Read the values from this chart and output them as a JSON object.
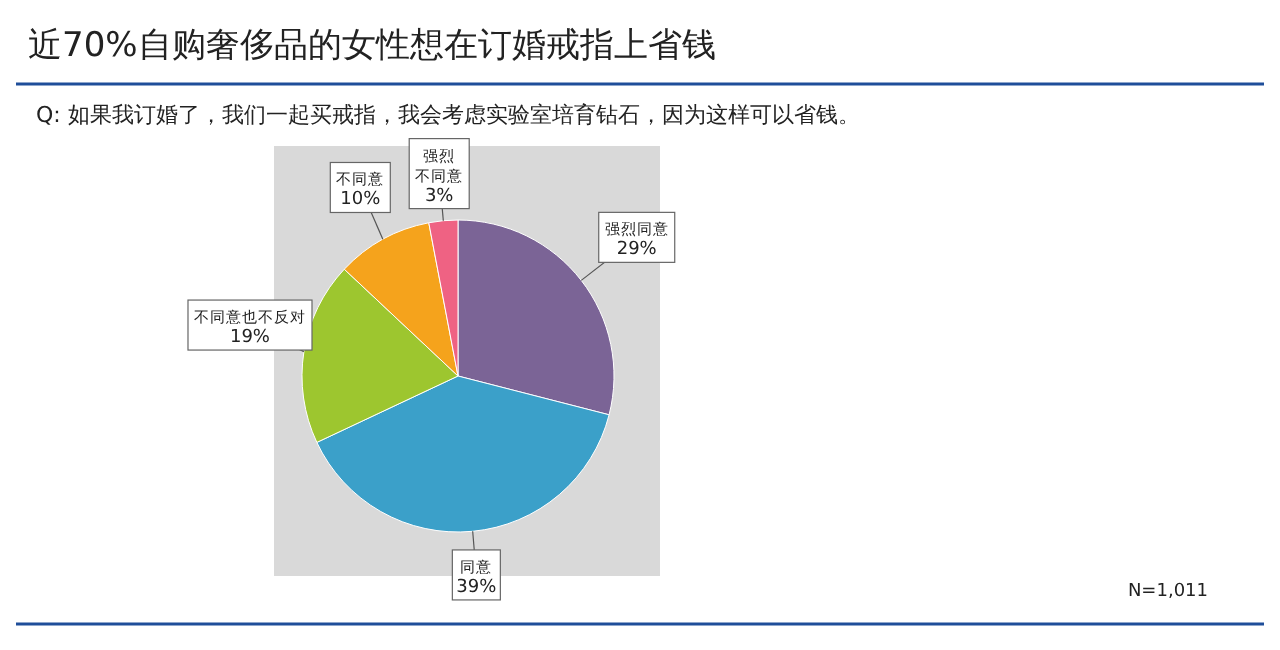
{
  "chart_data": {
    "type": "pie",
    "title": "近70%自购奢侈品的女性想在订婚戒指上省钱",
    "subtitle": "Q: 如果我订婚了，我们一起买戒指，我会考虑实验室培育钻石，因为这样可以省钱。",
    "categories": [
      "强烈同意",
      "同意",
      "不同意也不反对",
      "不同意",
      "强烈不同意"
    ],
    "values": [
      29,
      39,
      19,
      10,
      3
    ],
    "colors": [
      "#7b6496",
      "#3ba0c9",
      "#9dc62f",
      "#f5a31c",
      "#ef6283"
    ],
    "value_labels": [
      "29%",
      "39%",
      "19%",
      "10%",
      "3%"
    ],
    "annotations": [
      "N=1,011"
    ]
  }
}
